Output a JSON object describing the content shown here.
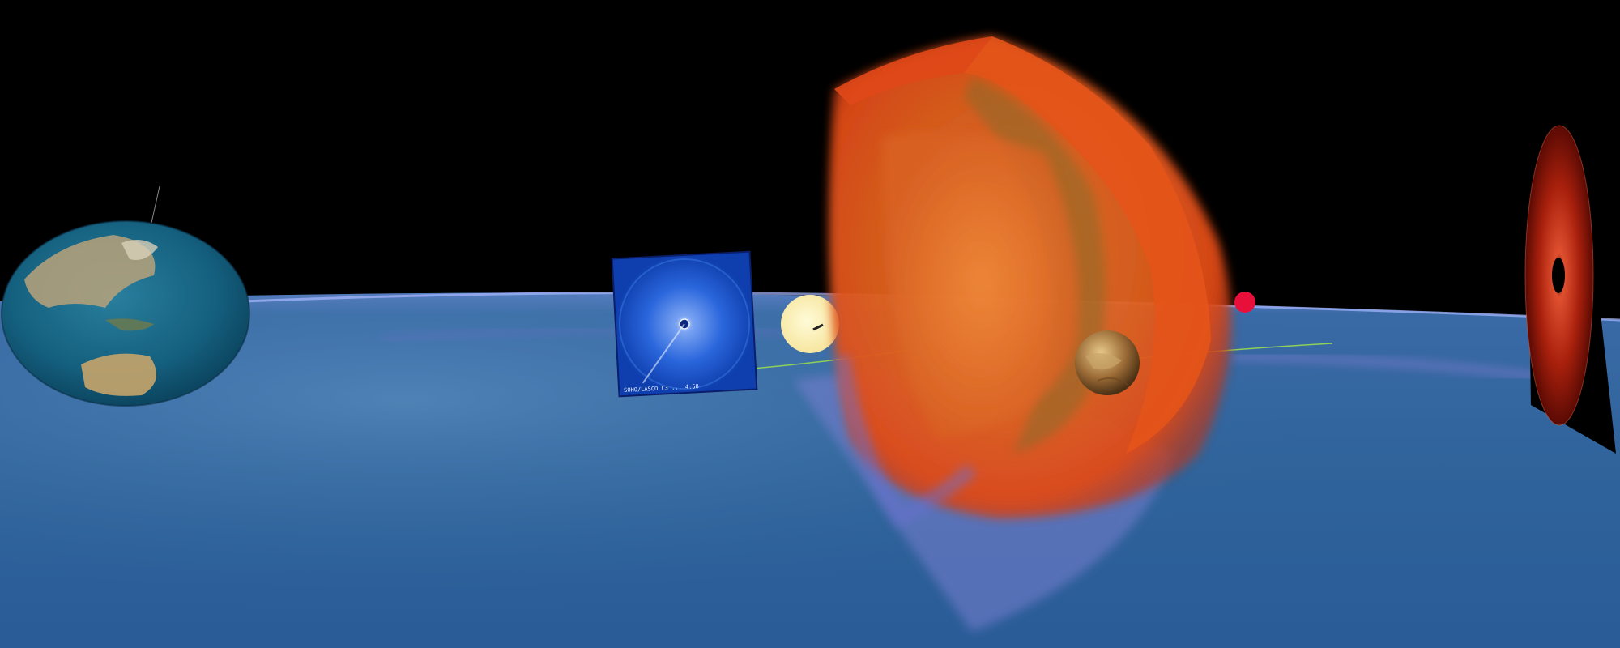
{
  "scene": {
    "coronagraph_caption": "SOHO/LASCO C3 ... 4:58",
    "colors": {
      "space": "#000000",
      "solar_wind_plane": "#2f639a",
      "plasma_hot": "#e54f1a",
      "plasma_mid": "#d97a2a",
      "sun_disk": "#fff3b0",
      "trajectory_line": "#8fd05a",
      "marker": "#e8103a",
      "coronagraph_blue": "#1f5fd6",
      "coronagraph_red": "#b42a12"
    },
    "objects": [
      {
        "name": "earth-globe"
      },
      {
        "name": "coronagraph-blue-image"
      },
      {
        "name": "sun-disk"
      },
      {
        "name": "cme-plasma-volume"
      },
      {
        "name": "venus-globe"
      },
      {
        "name": "red-marker"
      },
      {
        "name": "coronagraph-red-image"
      }
    ]
  }
}
